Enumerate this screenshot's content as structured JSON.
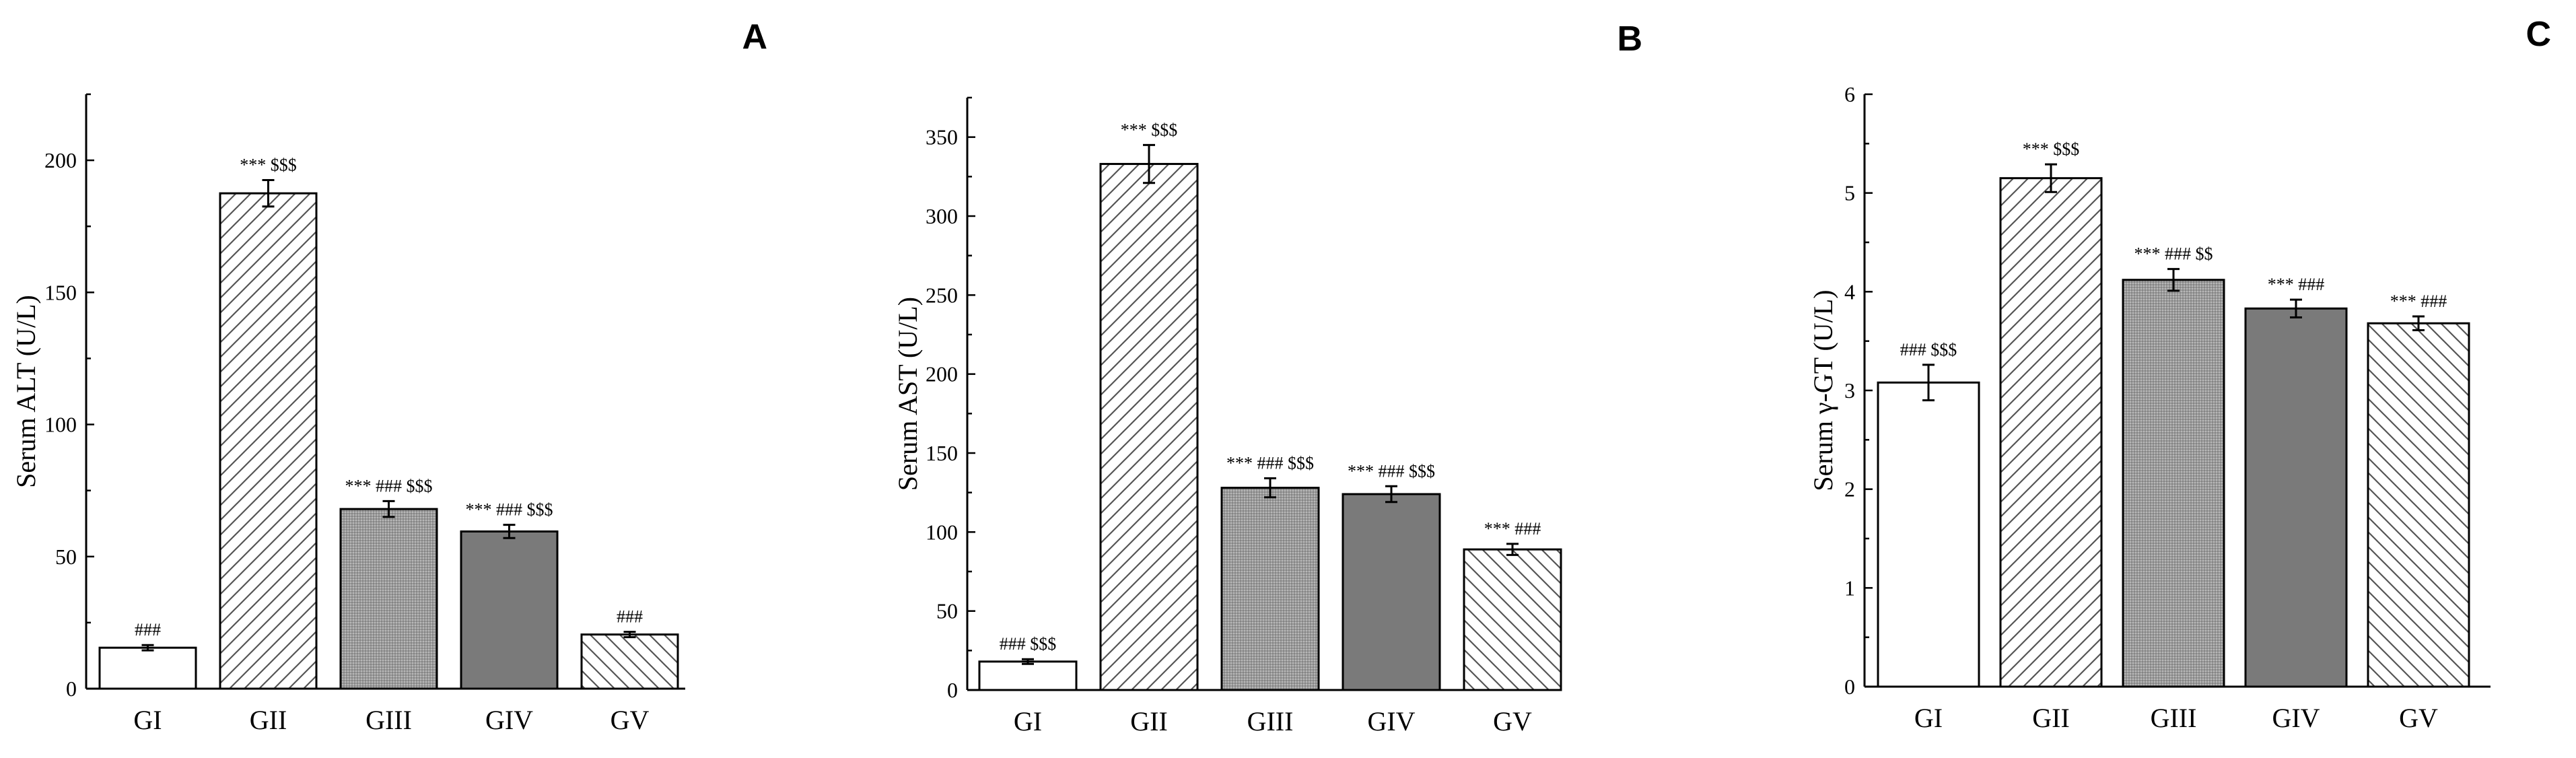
{
  "chart_data": [
    {
      "panel": "A",
      "type": "bar",
      "ylabel": "Serum ALT (U/L)",
      "ylim": [
        0,
        225
      ],
      "ticks": [
        0,
        50,
        100,
        150,
        200
      ],
      "categories": [
        "GI",
        "GII",
        "GIII",
        "GIV",
        "GV"
      ],
      "values": [
        15.5,
        187.5,
        68.0,
        59.5,
        20.5
      ],
      "errors": [
        1.0,
        5.0,
        3.0,
        2.5,
        1.0
      ],
      "annotations": [
        "###",
        "*** $$$",
        "*** ### $$$",
        "*** ### $$$",
        "###"
      ],
      "fills": [
        "white",
        "hatch-fwd",
        "dense-gray",
        "gray",
        "hatch-back"
      ]
    },
    {
      "panel": "B",
      "type": "bar",
      "ylabel": "Serum AST (U/L)",
      "ylim": [
        0,
        375
      ],
      "ticks": [
        0,
        50,
        100,
        150,
        200,
        250,
        300,
        350
      ],
      "categories": [
        "GI",
        "GII",
        "GIII",
        "GIV",
        "GV"
      ],
      "values": [
        18.0,
        333.0,
        128.0,
        124.0,
        89.0
      ],
      "errors": [
        1.5,
        12.0,
        6.0,
        5.0,
        3.5
      ],
      "annotations": [
        "### $$$",
        "*** $$$",
        "*** ### $$$",
        "*** ### $$$",
        "*** ###"
      ],
      "fills": [
        "white",
        "hatch-fwd",
        "dense-gray",
        "gray",
        "hatch-back"
      ]
    },
    {
      "panel": "C",
      "type": "bar",
      "ylabel": "Serum γ-GT (U/L)",
      "ylim": [
        0,
        6
      ],
      "ticks": [
        0,
        1,
        2,
        3,
        4,
        5,
        6
      ],
      "categories": [
        "GI",
        "GII",
        "GIII",
        "GIV",
        "GV"
      ],
      "values": [
        3.08,
        5.15,
        4.12,
        3.83,
        3.68
      ],
      "errors": [
        0.18,
        0.14,
        0.11,
        0.09,
        0.07
      ],
      "annotations": [
        "### $$$",
        "*** $$$",
        "*** ### $$",
        "*** ###",
        "*** ###"
      ],
      "fills": [
        "white",
        "hatch-fwd",
        "dense-gray",
        "gray",
        "hatch-back"
      ]
    }
  ]
}
